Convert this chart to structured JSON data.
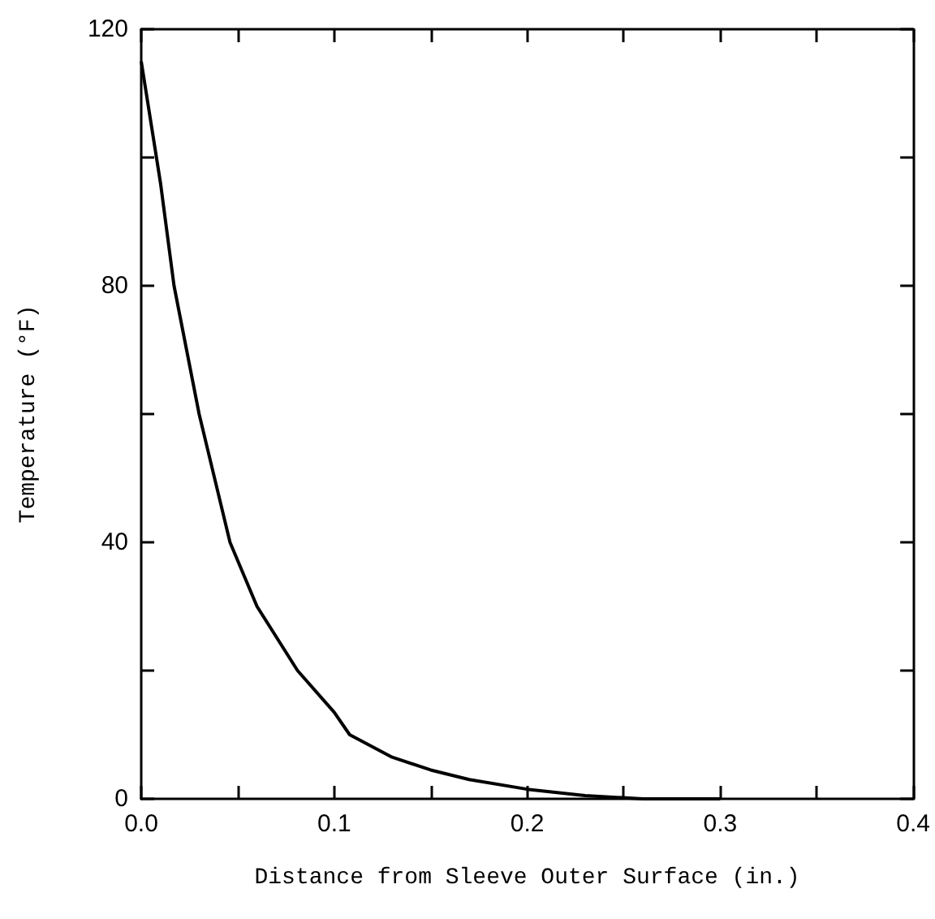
{
  "chart_data": {
    "type": "line",
    "xlabel": "Distance from Sleeve Outer Surface (in.)",
    "ylabel": "Temperature (°F)",
    "x": [
      0,
      0.01,
      0.017,
      0.03,
      0.046,
      0.06,
      0.081,
      0.1,
      0.108,
      0.13,
      0.15,
      0.17,
      0.2,
      0.23,
      0.26,
      0.3
    ],
    "series": [
      {
        "color": "#000000",
        "values": [
          115,
          96,
          80,
          60,
          40,
          30,
          20,
          13.5,
          10,
          6.5,
          4.5,
          3,
          1.5,
          0.5,
          0,
          0
        ]
      }
    ],
    "xlim": [
      0,
      0.4
    ],
    "ylim": [
      0,
      120
    ],
    "xticks": [
      {
        "value": 0,
        "label": "0.0"
      },
      {
        "value": 0.05,
        "label": null
      },
      {
        "value": 0.1,
        "label": "0.1"
      },
      {
        "value": 0.15,
        "label": null
      },
      {
        "value": 0.2,
        "label": "0.2"
      },
      {
        "value": 0.25,
        "label": null
      },
      {
        "value": 0.3,
        "label": "0.3"
      },
      {
        "value": 0.35,
        "label": null
      },
      {
        "value": 0.4,
        "label": "0.4"
      }
    ],
    "yticks": [
      0,
      {
        "value": 20,
        "label": null
      },
      40,
      {
        "value": 60,
        "label": null
      },
      80,
      {
        "value": 100,
        "label": null
      },
      120
    ],
    "grid": false,
    "marker": "none",
    "line_style": "solid"
  }
}
